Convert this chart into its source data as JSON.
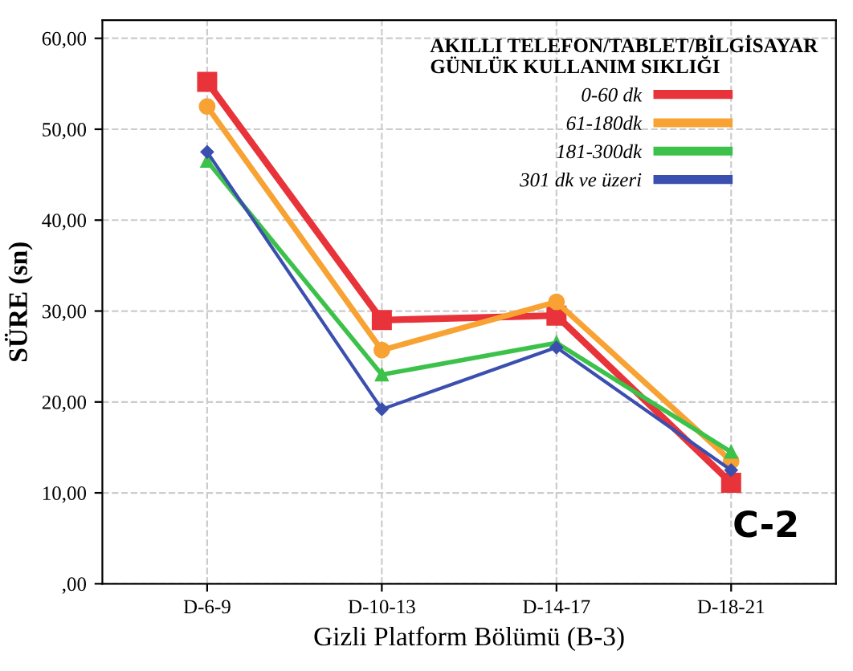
{
  "chart_data": {
    "type": "line",
    "xlabel": "Gizli Platform Bölümü (B-3)",
    "ylabel": "SÜRE (sn)",
    "legend_title": "AKILLI TELEFON/TABLET/BİLGİSAYAR\nGÜNLÜK KULLANIM SIKLIĞI",
    "categories": [
      "D-6-9",
      "D-10-13",
      "D-14-17",
      "D-18-21"
    ],
    "series": [
      {
        "name": "0-60 dk",
        "color": "#e8333a",
        "marker": "square",
        "values": [
          55.2,
          29.0,
          29.5,
          11.1
        ]
      },
      {
        "name": "61-180dk",
        "color": "#f7a233",
        "marker": "circle",
        "values": [
          52.5,
          25.7,
          31.0,
          13.5
        ]
      },
      {
        "name": "181-300dk",
        "color": "#3cc24a",
        "marker": "triangle",
        "values": [
          46.5,
          23.0,
          26.5,
          14.5
        ]
      },
      {
        "name": "301 dk ve üzeri",
        "color": "#3b4fae",
        "marker": "diamond",
        "values": [
          47.5,
          19.2,
          26.0,
          12.5
        ]
      }
    ],
    "ylim": [
      0,
      62
    ],
    "yticks": [
      {
        "value": 0,
        "label": ",00"
      },
      {
        "value": 10,
        "label": "10,00"
      },
      {
        "value": 20,
        "label": "20,00"
      },
      {
        "value": 30,
        "label": "30,00"
      },
      {
        "value": 40,
        "label": "40,00"
      },
      {
        "value": 50,
        "label": "50,00"
      },
      {
        "value": 60,
        "label": "60,00"
      }
    ],
    "grid": true,
    "legend": "top right",
    "line_style": "solid",
    "annotations": [
      {
        "text": "C-2"
      }
    ]
  }
}
